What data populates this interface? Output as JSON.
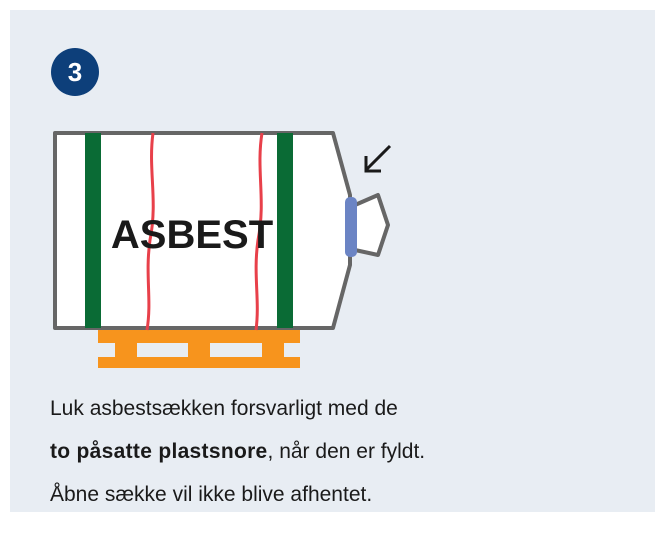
{
  "badge": "3",
  "label": "ASBEST",
  "text": {
    "line1": "Luk asbestsækken forsvarligt med de",
    "line2_bold": "to påsatte plastsnore",
    "line2_rest": ", når den er fyldt.",
    "line3": "Åbne sække vil ikke blive afhentet."
  }
}
